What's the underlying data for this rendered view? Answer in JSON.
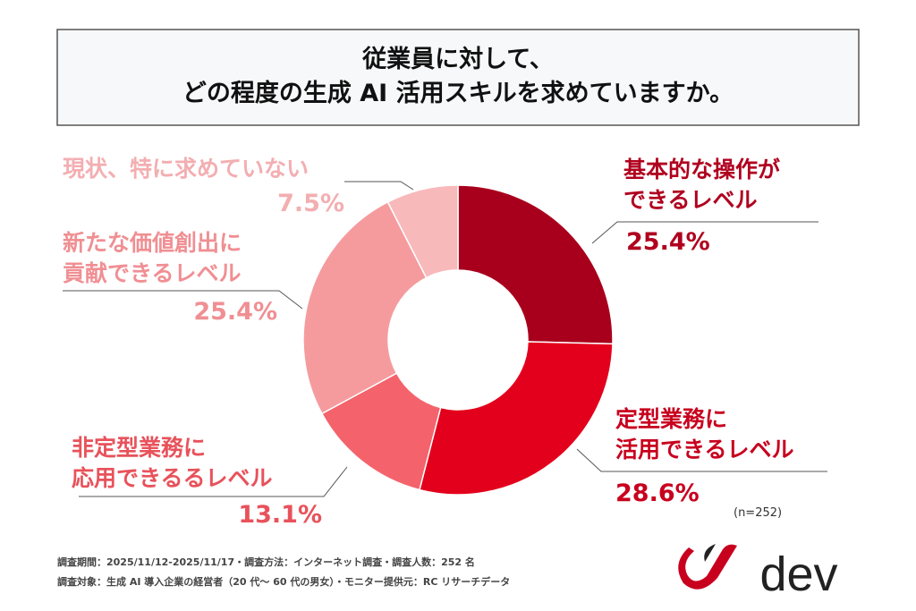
{
  "chart_data": {
    "type": "pie",
    "title": "従業員に対して、\nどの程度の生成 AI 活用スキルを求めていますか。",
    "categories": [
      "基本的な操作が\nできるレベル",
      "定型業務に\n活用できるレベル",
      "非定型業務に\n応用できるるレベル",
      "新たな価値創出に\n貢献できるレベル",
      "現状、特に求めていない"
    ],
    "values": [
      25.4,
      28.6,
      13.1,
      25.4,
      7.5
    ],
    "value_labels": [
      "25.4%",
      "28.6%",
      "13.1%",
      "25.4%",
      "7.5%"
    ],
    "colors": [
      "#a8001c",
      "#e3001c",
      "#f4636b",
      "#f59b9e",
      "#f8b9bb"
    ],
    "label_colors": [
      "#b0001e",
      "#c8001e",
      "#e8525b",
      "#f08f93",
      "#f3aeb1"
    ],
    "donut": true,
    "sample_size": "(n=252)",
    "footnotes": [
      "調査期間：2025/11/12-2025/11/17・調査方法：インターネット調査・調査人数：252 名",
      "調査対象：生成 AI 導入企業の経営者（20 代〜 60 代の男女）・モニター提供元：RC リサーチデータ"
    ],
    "logo": "dev"
  }
}
